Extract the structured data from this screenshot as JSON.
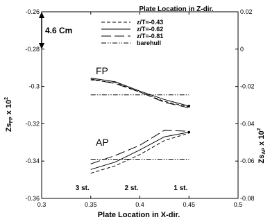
{
  "chart_data": {
    "type": "line",
    "title": "Plate Location in Z-dir.",
    "xlabel": "Plate Location in X-dir.",
    "ylabel_left": "Zs_FP x 10^2",
    "ylabel_right": "Zs_AP x 10^2",
    "ylabel_left_parts": {
      "base": "Zs",
      "sub": "FP",
      "mid": " x 10",
      "sup": "2"
    },
    "ylabel_right_parts": {
      "base": "Zs",
      "sub": "AP",
      "mid": " x 10",
      "sup": "2"
    },
    "xlim": [
      0.3,
      0.5
    ],
    "ylim_left": [
      -0.36,
      -0.26
    ],
    "ylim_right": [
      -0.08,
      0.02
    ],
    "x_ticks": [
      {
        "v": 0.3,
        "label": "0.3"
      },
      {
        "v": 0.35,
        "label": "0.35"
      },
      {
        "v": 0.4,
        "label": "0.4"
      },
      {
        "v": 0.45,
        "label": "0.45"
      },
      {
        "v": 0.5,
        "label": "0.5"
      }
    ],
    "y_left_ticks": [
      {
        "v": -0.26,
        "label": "-0.26"
      },
      {
        "v": -0.28,
        "label": "-0.28"
      },
      {
        "v": -0.3,
        "label": "-0.3"
      },
      {
        "v": -0.32,
        "label": "-0.32"
      },
      {
        "v": -0.34,
        "label": "-0.34"
      },
      {
        "v": -0.36,
        "label": "-0.36"
      }
    ],
    "y_right_ticks": [
      {
        "v": 0.02,
        "label": "0.02"
      },
      {
        "v": 0.0,
        "label": "0"
      },
      {
        "v": -0.02,
        "label": "-0.02"
      },
      {
        "v": -0.04,
        "label": "-0.04"
      },
      {
        "v": -0.06,
        "label": "-0.06"
      },
      {
        "v": -0.08,
        "label": "-0.08"
      }
    ],
    "legend_position": "top-center",
    "series_styles": [
      {
        "name": "z/T=-0.43",
        "dash": "dashed"
      },
      {
        "name": "z/T=-0.62",
        "dash": "solid"
      },
      {
        "name": "z/T=-0.81",
        "dash": "long-dash"
      },
      {
        "name": "barehull",
        "dash": "dash-dot-dot"
      }
    ],
    "groups": [
      {
        "label": "FP",
        "series": [
          {
            "name": "z/T=-0.43",
            "x": [
              0.35,
              0.375,
              0.4,
              0.425,
              0.45
            ],
            "y": [
              -0.2965,
              -0.298,
              -0.303,
              -0.308,
              -0.311
            ]
          },
          {
            "name": "z/T=-0.62",
            "x": [
              0.35,
              0.375,
              0.4,
              0.425,
              0.45
            ],
            "y": [
              -0.2955,
              -0.2975,
              -0.3025,
              -0.307,
              -0.3105
            ]
          },
          {
            "name": "z/T=-0.81",
            "x": [
              0.35,
              0.375,
              0.4,
              0.425,
              0.45
            ],
            "y": [
              -0.296,
              -0.2985,
              -0.303,
              -0.3085,
              -0.3115
            ]
          },
          {
            "name": "barehull",
            "x": [
              0.35,
              0.45
            ],
            "y": [
              -0.3045,
              -0.3045
            ]
          }
        ]
      },
      {
        "label": "AP",
        "series": [
          {
            "name": "z/T=-0.43",
            "x": [
              0.35,
              0.375,
              0.4,
              0.425,
              0.45
            ],
            "y": [
              -0.3465,
              -0.3425,
              -0.3365,
              -0.329,
              -0.325
            ]
          },
          {
            "name": "z/T=-0.62",
            "x": [
              0.35,
              0.375,
              0.4,
              0.425,
              0.45
            ],
            "y": [
              -0.3445,
              -0.3405,
              -0.334,
              -0.327,
              -0.3245
            ]
          },
          {
            "name": "z/T=-0.81",
            "x": [
              0.35,
              0.375,
              0.4,
              0.425,
              0.45
            ],
            "y": [
              -0.3415,
              -0.337,
              -0.3315,
              -0.3235,
              -0.324
            ]
          },
          {
            "name": "barehull",
            "x": [
              0.35,
              0.45
            ],
            "y": [
              -0.339,
              -0.339
            ]
          }
        ]
      }
    ],
    "station_labels": [
      {
        "x": 0.35,
        "label": "3 st."
      },
      {
        "x": 0.4,
        "label": "2 st."
      },
      {
        "x": 0.45,
        "label": "1 st."
      }
    ],
    "scale_annotation": "4.6 Cm"
  }
}
